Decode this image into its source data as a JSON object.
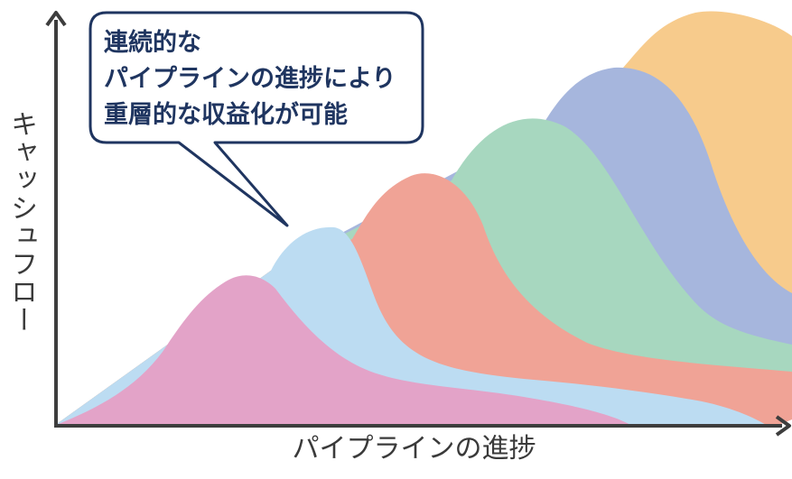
{
  "axes": {
    "y_label": "キャッシュフロー",
    "x_label": "パイプラインの進捗"
  },
  "callout": {
    "lines": [
      "連続的な",
      "パイプラインの進捗により",
      "重層的な収益化が可能"
    ]
  },
  "colors": {
    "axis": "#3d3d3d",
    "callout_border": "#1f3560",
    "layer_1": "#e3a3c8",
    "layer_2": "#bcdcf2",
    "layer_3": "#f0a396",
    "layer_4": "#a7d7bf",
    "layer_5": "#a6b6dd",
    "layer_6": "#f7cb8c"
  }
}
